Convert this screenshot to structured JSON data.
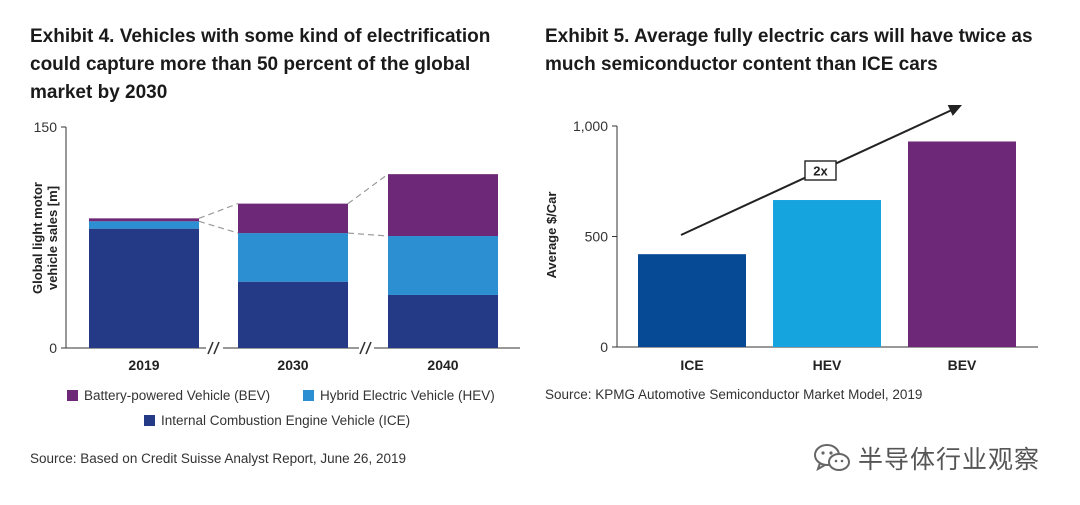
{
  "exhibit4": {
    "title": "Exhibit 4. Vehicles with some kind of electrification could capture more than 50 percent of the global market by 2030",
    "source": "Source: Based on Credit Suisse Analyst Report, June 26, 2019"
  },
  "exhibit5": {
    "title": "Exhibit 5. Average fully electric cars will have twice as much semiconductor content than ICE cars",
    "source": "Source: KPMG Automotive Semiconductor Market Model, 2019"
  },
  "watermark": {
    "text": "半导体行业观察",
    "icon": "wechat-icon"
  },
  "chart_data": [
    {
      "type": "bar",
      "stacked": true,
      "categories": [
        "2019",
        "2030",
        "2040"
      ],
      "series": [
        {
          "name": "Internal Combustion Engine Vehicle (ICE)",
          "color": "#253a86",
          "values": [
            81,
            45,
            36
          ]
        },
        {
          "name": "Hybrid Electric Vehicle (HEV)",
          "color": "#2b8fd1",
          "values": [
            5,
            33,
            40
          ]
        },
        {
          "name": "Battery-powered Vehicle (BEV)",
          "color": "#6d2977",
          "values": [
            2,
            20,
            42
          ]
        }
      ],
      "legend_order": [
        "Battery-powered Vehicle (BEV)",
        "Hybrid Electric Vehicle (HEV)",
        "Internal Combustion Engine Vehicle (ICE)"
      ],
      "ylabel": "Global light motor vehicle sales [m]",
      "ylim": [
        0,
        150
      ],
      "yticks": [
        "0",
        "150"
      ],
      "axis_breaks": true,
      "connector_lines": "dashed",
      "legend_position": "bottom"
    },
    {
      "type": "bar",
      "categories": [
        "ICE",
        "HEV",
        "BEV"
      ],
      "values": [
        420,
        665,
        930
      ],
      "colors": [
        "#064a96",
        "#16a4de",
        "#6d2977"
      ],
      "ylabel": "Average $/Car",
      "ylim": [
        0,
        1000
      ],
      "yticks": [
        "0",
        "500",
        "1,000"
      ],
      "annotation": "2x",
      "trend_arrow": true
    }
  ]
}
